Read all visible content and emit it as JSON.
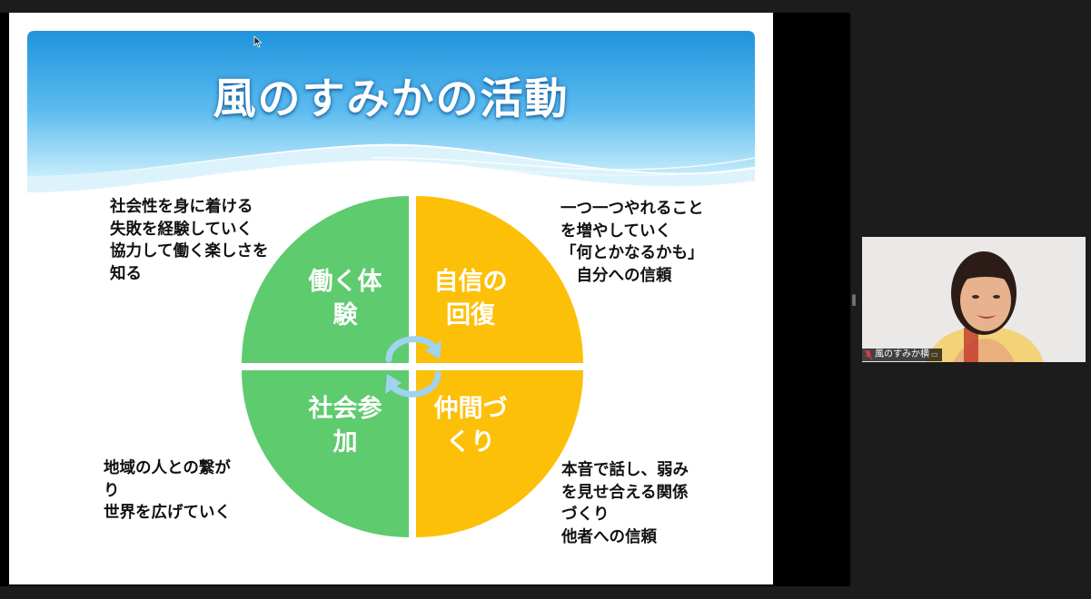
{
  "slide": {
    "title": "風のすみかの活動",
    "quadrants": {
      "top_left": [
        "働く体",
        "験"
      ],
      "top_right": [
        "自信の",
        "回復"
      ],
      "bottom_left": [
        "社会参",
        "加"
      ],
      "bottom_right": [
        "仲間づ",
        "くり"
      ]
    },
    "notes": {
      "top_left": "社会性を身に着ける\n失敗を経験していく\n協力して働く楽しさを\n知る",
      "top_right": "一つ一つやれること\nを増やしていく\n「何とかなるかも」\n　自分への信頼",
      "bottom_left": "地域の人との繋が\nり\n世界を広げていく",
      "bottom_right": "本音で話し、弱み\nを見せ合える関係\nづくり\n他者への信頼"
    },
    "colors": {
      "green": "#5ecb6e",
      "gold": "#fdc008",
      "banner_light": "#c6ecfb",
      "banner_dark": "#1f93dc",
      "cycle_arrow": "#9fd3ee"
    }
  },
  "participant": {
    "name": "風のすみか横",
    "mic_icon": "mic-muted-icon"
  }
}
